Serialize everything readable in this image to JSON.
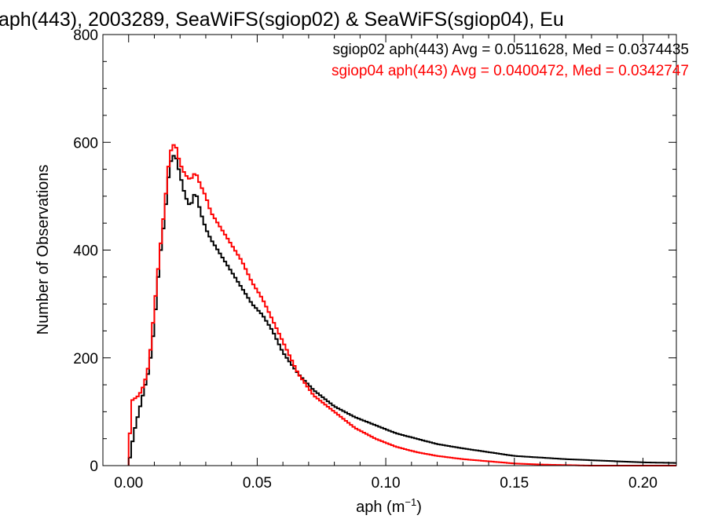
{
  "chart_data": {
    "type": "histogram",
    "title": "aph(443), 2003289, SeaWiFS(sgiop02) & SeaWiFS(sgiop04), Eu",
    "xlabel": "aph (m",
    "xlabel_sup": "−1",
    "xlabel_suffix": ")",
    "ylabel": "Number of Observations",
    "xlim": [
      -0.01,
      0.213
    ],
    "ylim": [
      0,
      800
    ],
    "xticks": [
      0.0,
      0.05,
      0.1,
      0.15,
      0.2
    ],
    "xtick_labels": [
      "0.00",
      "0.05",
      "0.10",
      "0.15",
      "0.20"
    ],
    "yticks": [
      0,
      200,
      400,
      600,
      800
    ],
    "ytick_labels": [
      "0",
      "200",
      "400",
      "600",
      "800"
    ],
    "grid": false,
    "legend_position": "top-right",
    "bin_width": 0.001,
    "x_start": 0.0,
    "series": [
      {
        "name": "sgiop02",
        "color": "#000000",
        "legend": "sgiop02 aph(443) Avg = 0.0511628, Med = 0.0374435",
        "points": [
          [
            0.0,
            0
          ],
          [
            0.002,
            60
          ],
          [
            0.004,
            100
          ],
          [
            0.006,
            140
          ],
          [
            0.008,
            180
          ],
          [
            0.01,
            260
          ],
          [
            0.012,
            380
          ],
          [
            0.014,
            460
          ],
          [
            0.016,
            560
          ],
          [
            0.018,
            580
          ],
          [
            0.02,
            540
          ],
          [
            0.022,
            500
          ],
          [
            0.024,
            480
          ],
          [
            0.026,
            510
          ],
          [
            0.028,
            470
          ],
          [
            0.03,
            440
          ],
          [
            0.032,
            420
          ],
          [
            0.036,
            390
          ],
          [
            0.04,
            360
          ],
          [
            0.044,
            330
          ],
          [
            0.048,
            300
          ],
          [
            0.052,
            280
          ],
          [
            0.056,
            250
          ],
          [
            0.06,
            210
          ],
          [
            0.066,
            170
          ],
          [
            0.072,
            140
          ],
          [
            0.08,
            110
          ],
          [
            0.088,
            90
          ],
          [
            0.096,
            75
          ],
          [
            0.104,
            60
          ],
          [
            0.112,
            50
          ],
          [
            0.12,
            40
          ],
          [
            0.13,
            32
          ],
          [
            0.14,
            25
          ],
          [
            0.15,
            18
          ],
          [
            0.16,
            15
          ],
          [
            0.17,
            12
          ],
          [
            0.18,
            10
          ],
          [
            0.19,
            8
          ],
          [
            0.2,
            6
          ],
          [
            0.212,
            5
          ]
        ]
      },
      {
        "name": "sgiop04",
        "color": "#ff0000",
        "legend": "sgiop04 aph(443) Avg = 0.0400472, Med = 0.0342747",
        "points": [
          [
            0.0,
            0
          ],
          [
            0.001,
            120
          ],
          [
            0.004,
            130
          ],
          [
            0.006,
            150
          ],
          [
            0.008,
            190
          ],
          [
            0.01,
            290
          ],
          [
            0.012,
            390
          ],
          [
            0.014,
            480
          ],
          [
            0.016,
            580
          ],
          [
            0.018,
            600
          ],
          [
            0.02,
            560
          ],
          [
            0.022,
            540
          ],
          [
            0.024,
            530
          ],
          [
            0.026,
            545
          ],
          [
            0.028,
            520
          ],
          [
            0.03,
            500
          ],
          [
            0.032,
            470
          ],
          [
            0.036,
            440
          ],
          [
            0.04,
            410
          ],
          [
            0.044,
            380
          ],
          [
            0.048,
            340
          ],
          [
            0.052,
            310
          ],
          [
            0.056,
            270
          ],
          [
            0.06,
            230
          ],
          [
            0.066,
            170
          ],
          [
            0.072,
            130
          ],
          [
            0.08,
            100
          ],
          [
            0.088,
            70
          ],
          [
            0.096,
            50
          ],
          [
            0.104,
            35
          ],
          [
            0.112,
            25
          ],
          [
            0.12,
            18
          ],
          [
            0.13,
            12
          ],
          [
            0.14,
            8
          ],
          [
            0.15,
            4
          ],
          [
            0.16,
            2
          ],
          [
            0.17,
            1
          ],
          [
            0.18,
            0
          ],
          [
            0.212,
            0
          ]
        ]
      }
    ]
  }
}
